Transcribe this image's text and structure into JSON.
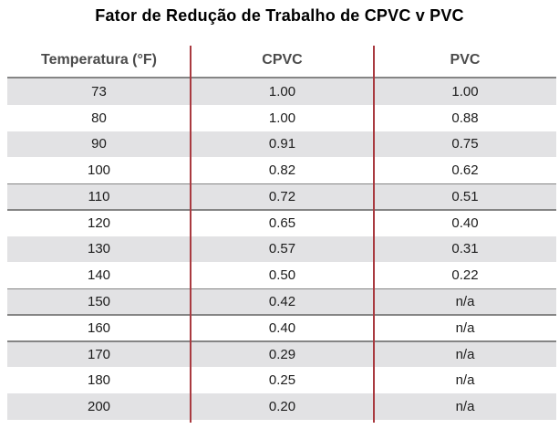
{
  "chart_data": {
    "type": "table",
    "title": "Fator de Redução de Trabalho de CPVC v PVC",
    "columns": [
      "Temperatura (°F)",
      "CPVC",
      "PVC"
    ],
    "rows": [
      {
        "temp": "73",
        "cpvc": "1.00",
        "pvc": "1.00"
      },
      {
        "temp": "80",
        "cpvc": "1.00",
        "pvc": "0.88"
      },
      {
        "temp": "90",
        "cpvc": "0.91",
        "pvc": "0.75"
      },
      {
        "temp": "100",
        "cpvc": "0.82",
        "pvc": "0.62"
      },
      {
        "temp": "110",
        "cpvc": "0.72",
        "pvc": "0.51"
      },
      {
        "temp": "120",
        "cpvc": "0.65",
        "pvc": "0.40"
      },
      {
        "temp": "130",
        "cpvc": "0.57",
        "pvc": "0.31"
      },
      {
        "temp": "140",
        "cpvc": "0.50",
        "pvc": "0.22"
      },
      {
        "temp": "150",
        "cpvc": "0.42",
        "pvc": "n/a"
      },
      {
        "temp": "160",
        "cpvc": "0.40",
        "pvc": "n/a"
      },
      {
        "temp": "170",
        "cpvc": "0.29",
        "pvc": "n/a"
      },
      {
        "temp": "180",
        "cpvc": "0.25",
        "pvc": "n/a"
      },
      {
        "temp": "200",
        "cpvc": "0.20",
        "pvc": "n/a"
      }
    ],
    "shaded_row_temps": [
      "73",
      "90",
      "110",
      "130",
      "150",
      "170",
      "200"
    ],
    "rule_below_temps": [
      "100",
      "110",
      "140",
      "150",
      "160"
    ]
  },
  "colors": {
    "accent_red": "#a93a40",
    "row_shade": "#e2e2e4",
    "rule_gray": "#858585",
    "header_text": "#4b4b4b",
    "body_text": "#1c1c1c",
    "title_text": "#000000"
  }
}
